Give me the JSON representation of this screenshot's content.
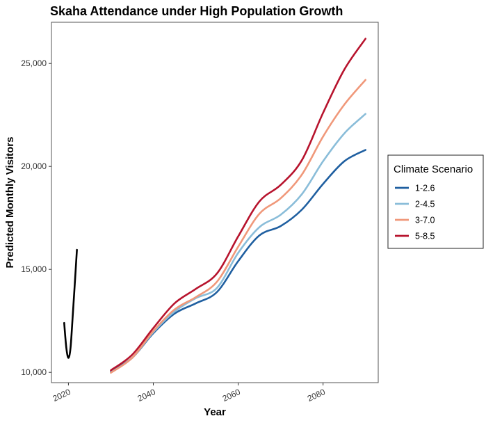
{
  "chart_data": {
    "type": "line",
    "title": "Skaha Attendance under High Population Growth",
    "xlabel": "Year",
    "ylabel": "Predicted Monthly Visitors",
    "xlim": [
      2016,
      2093
    ],
    "ylim": [
      9500,
      27000
    ],
    "x_ticks": [
      2020,
      2040,
      2060,
      2080
    ],
    "y_ticks": [
      10000,
      15000,
      20000,
      25000
    ],
    "y_tick_labels": [
      "10,000",
      "15,000",
      "20,000",
      "25,000"
    ],
    "grid": false,
    "legend": {
      "title": "Climate Scenario",
      "placement": "right"
    },
    "historical": {
      "color": "#000000",
      "x": [
        2019,
        2019.5,
        2020,
        2020.5,
        2021,
        2021.5,
        2022
      ],
      "y": [
        12400,
        11200,
        10700,
        11200,
        12700,
        14300,
        15950
      ]
    },
    "x": [
      2030,
      2035,
      2040,
      2045,
      2050,
      2055,
      2060,
      2065,
      2070,
      2075,
      2080,
      2085,
      2090
    ],
    "series": [
      {
        "name": "1-2.6",
        "color": "#1f5fa0",
        "values": [
          10050,
          10700,
          11900,
          12850,
          13350,
          13900,
          15400,
          16650,
          17100,
          17900,
          19150,
          20250,
          20800
        ]
      },
      {
        "name": "2-4.5",
        "color": "#8abdd9",
        "values": [
          10000,
          10700,
          11950,
          12950,
          13600,
          14100,
          15800,
          17050,
          17650,
          18650,
          20250,
          21600,
          22550
        ]
      },
      {
        "name": "3-7.0",
        "color": "#f0987a",
        "values": [
          9980,
          10700,
          12000,
          13050,
          13650,
          14400,
          16100,
          17700,
          18450,
          19600,
          21450,
          23000,
          24200
        ]
      },
      {
        "name": "5-8.5",
        "color": "#b7132d",
        "values": [
          10100,
          10850,
          12150,
          13350,
          14050,
          14800,
          16600,
          18300,
          19100,
          20300,
          22600,
          24700,
          26200
        ]
      }
    ]
  }
}
